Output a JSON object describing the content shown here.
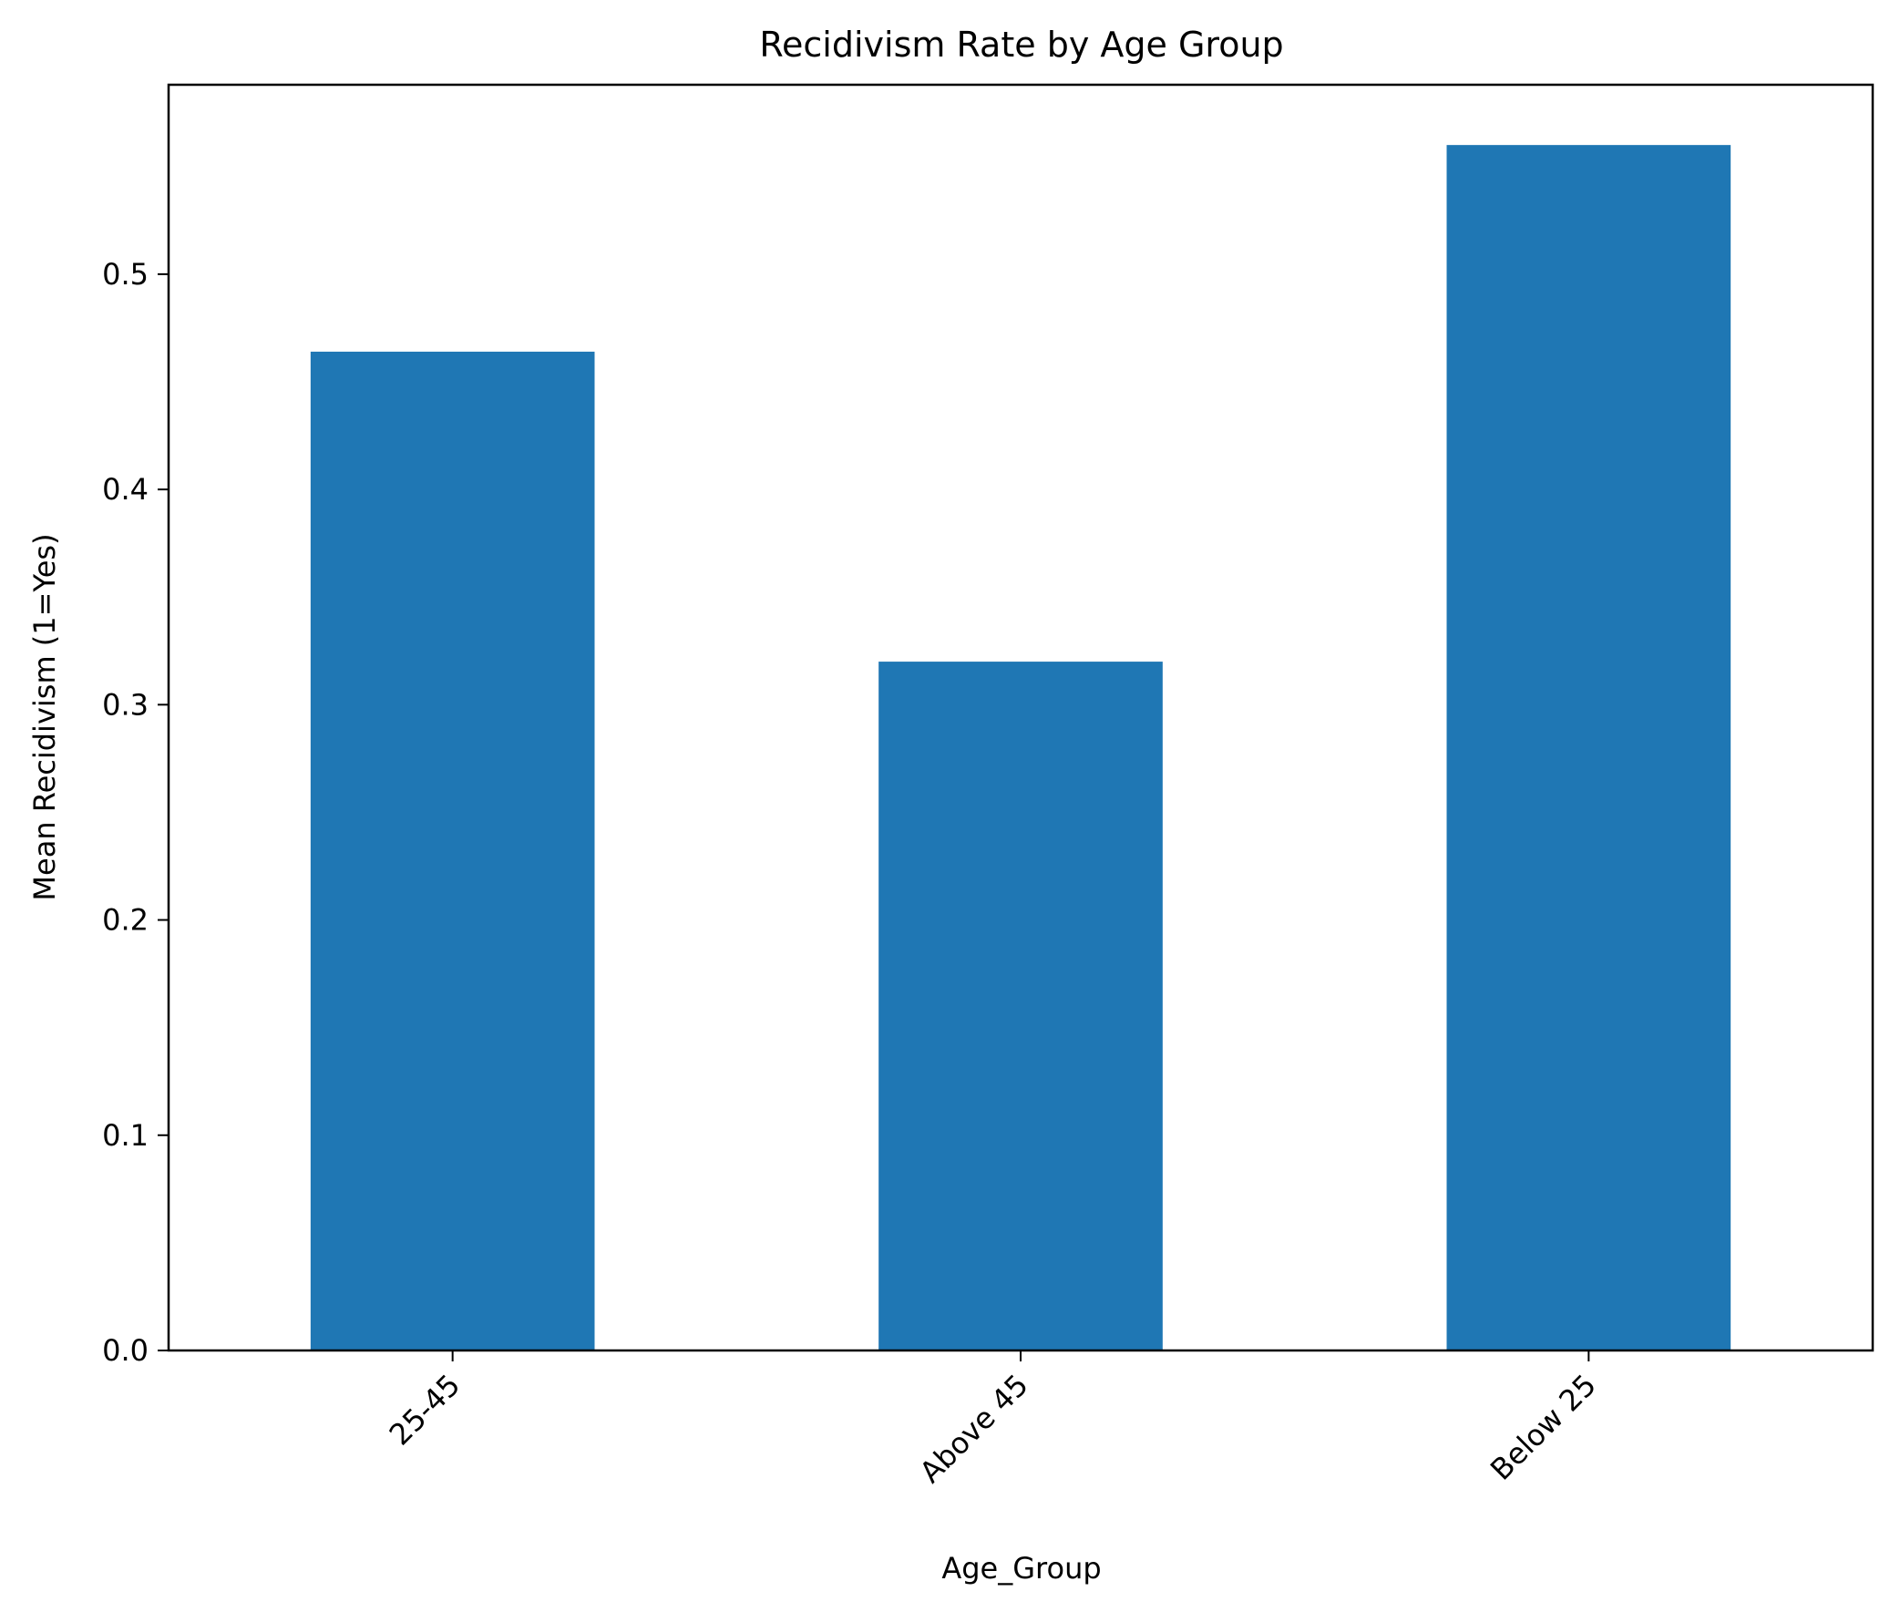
{
  "chart_data": {
    "type": "bar",
    "title": "Recidivism Rate by Age Group",
    "xlabel": "Age_Group",
    "ylabel": "Mean Recidivism (1=Yes)",
    "categories": [
      "25-45",
      "Above 45",
      "Below 25"
    ],
    "values": [
      0.464,
      0.32,
      0.56
    ],
    "ylim": [
      0,
      0.588
    ],
    "yticks": [
      0.0,
      0.1,
      0.2,
      0.3,
      0.4,
      0.5
    ],
    "ytick_labels": [
      "0.0",
      "0.1",
      "0.2",
      "0.3",
      "0.4",
      "0.5"
    ],
    "xtick_rotation_deg": 45,
    "grid": false,
    "legend": "none",
    "colors": {
      "bar": "#1f77b4",
      "axes": "#000000",
      "background": "#ffffff"
    }
  }
}
